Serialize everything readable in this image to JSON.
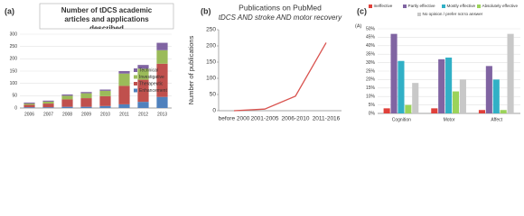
{
  "chart_data": [
    {
      "type": "bar",
      "stacked": true,
      "label": "(a)",
      "title": "Number of tDCS academic articles and applications described",
      "categories": [
        "2006",
        "2007",
        "2008",
        "2009",
        "2010",
        "2011",
        "2012",
        "2013"
      ],
      "series": [
        {
          "name": "Enhancement",
          "color": "#4f81bd",
          "values": [
            3,
            3,
            5,
            5,
            8,
            15,
            25,
            45
          ]
        },
        {
          "name": "Therapeutic",
          "color": "#c0504d",
          "values": [
            10,
            15,
            30,
            35,
            40,
            75,
            90,
            135
          ]
        },
        {
          "name": "Investigative",
          "color": "#9bbb59",
          "values": [
            5,
            8,
            15,
            20,
            22,
            50,
            45,
            55
          ]
        },
        {
          "name": "Technical",
          "color": "#8064a2",
          "values": [
            4,
            4,
            5,
            5,
            5,
            10,
            15,
            30
          ]
        }
      ],
      "ylim": [
        0,
        300
      ],
      "yticks": [
        0,
        50,
        100,
        150,
        200,
        250,
        300
      ],
      "grid": true
    },
    {
      "type": "line",
      "label": "(b)",
      "title": "Publications on PubMed",
      "subtitle": "tDCS AND  stroke AND motor recovery",
      "ylabel": "Number of publications",
      "categories": [
        "before 2000",
        "2001-2005",
        "2006-2010",
        "2011-2016"
      ],
      "values": [
        0,
        5,
        45,
        210
      ],
      "color": "#d9534f",
      "ylim": [
        0,
        250
      ],
      "yticks": [
        0,
        50,
        100,
        150,
        200,
        250
      ],
      "grid": false
    },
    {
      "type": "bar",
      "stacked": false,
      "label": "(c)",
      "ylabel": "(A)",
      "categories": [
        "Cognition",
        "Motor",
        "Affect"
      ],
      "series": [
        {
          "name": "Ineffective",
          "color": "#e0403a",
          "values": [
            3,
            3,
            2
          ]
        },
        {
          "name": "Partly effective",
          "color": "#8064a2",
          "values": [
            47,
            32,
            28
          ]
        },
        {
          "name": "Mostly effective",
          "color": "#31b0c6",
          "values": [
            31,
            33,
            20
          ]
        },
        {
          "name": "Absolutely effective",
          "color": "#9bd35a",
          "values": [
            5,
            13,
            2
          ]
        },
        {
          "name": "No opinion / prefer not to answer",
          "color": "#c8c8c8",
          "values": [
            18,
            20,
            47
          ]
        }
      ],
      "ylim": [
        0,
        50
      ],
      "yticks": [
        {
          "value": 0,
          "label": "0%"
        },
        {
          "value": 5,
          "label": "5%"
        },
        {
          "value": 10,
          "label": "10%"
        },
        {
          "value": 15,
          "label": "15%"
        },
        {
          "value": 20,
          "label": "20%"
        },
        {
          "value": 25,
          "label": "25%"
        },
        {
          "value": 30,
          "label": "30%"
        },
        {
          "value": 35,
          "label": "35%"
        },
        {
          "value": 40,
          "label": "40%"
        },
        {
          "value": 45,
          "label": "45%"
        },
        {
          "value": 50,
          "label": "50%"
        }
      ],
      "grid": true
    }
  ]
}
